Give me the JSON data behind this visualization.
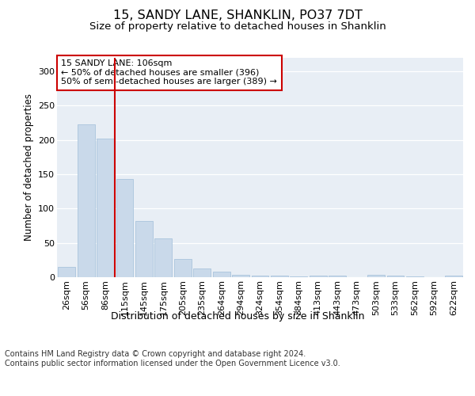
{
  "title": "15, SANDY LANE, SHANKLIN, PO37 7DT",
  "subtitle": "Size of property relative to detached houses in Shanklin",
  "xlabel": "Distribution of detached houses by size in Shanklin",
  "ylabel": "Number of detached properties",
  "bar_color": "#c9d9ea",
  "bar_edge_color": "#aac4dc",
  "background_color": "#e8eef5",
  "vline_color": "#cc0000",
  "vline_index": 3,
  "annotation_text": "15 SANDY LANE: 106sqm\n← 50% of detached houses are smaller (396)\n50% of semi-detached houses are larger (389) →",
  "annotation_box_facecolor": "#ffffff",
  "annotation_box_edgecolor": "#cc0000",
  "footer": "Contains HM Land Registry data © Crown copyright and database right 2024.\nContains public sector information licensed under the Open Government Licence v3.0.",
  "categories": [
    "26sqm",
    "56sqm",
    "86sqm",
    "115sqm",
    "145sqm",
    "175sqm",
    "205sqm",
    "235sqm",
    "264sqm",
    "294sqm",
    "324sqm",
    "354sqm",
    "384sqm",
    "413sqm",
    "443sqm",
    "473sqm",
    "503sqm",
    "533sqm",
    "562sqm",
    "592sqm",
    "622sqm"
  ],
  "values": [
    15,
    222,
    202,
    143,
    82,
    57,
    26,
    13,
    8,
    4,
    2,
    2,
    1,
    2,
    2,
    0,
    4,
    2,
    1,
    0,
    2
  ],
  "ylim": [
    0,
    320
  ],
  "yticks": [
    0,
    50,
    100,
    150,
    200,
    250,
    300
  ],
  "title_fontsize": 11.5,
  "subtitle_fontsize": 9.5,
  "tick_fontsize": 8,
  "ylabel_fontsize": 8.5,
  "xlabel_fontsize": 9,
  "footer_fontsize": 7,
  "annotation_fontsize": 8
}
